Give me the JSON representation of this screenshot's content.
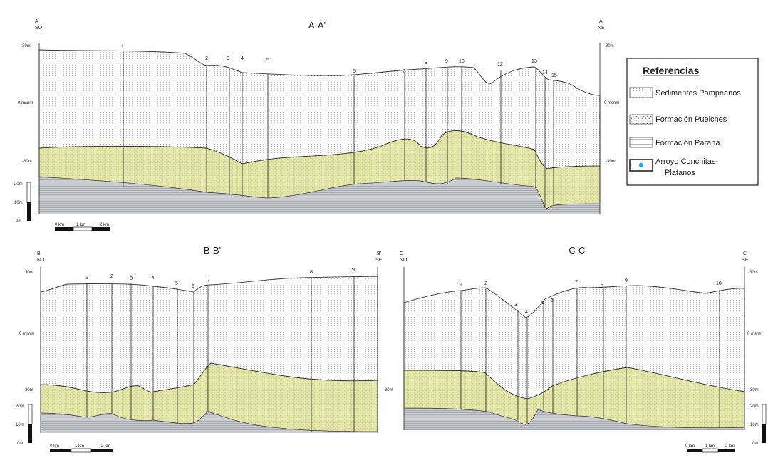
{
  "sections": [
    {
      "id": "a",
      "title": "A-A'",
      "left_label": "A",
      "left_dir": "SO",
      "right_label": "A'",
      "right_dir": "NE",
      "left_ticks": [
        "30m",
        "0 msnm",
        "-30m"
      ],
      "right_ticks": [
        "30m",
        "0 msnm",
        "-30m"
      ],
      "vscale_ticks": [
        "20m",
        "10m",
        "0m"
      ],
      "scalebar": [
        "0 km",
        "1 km",
        "2 km"
      ],
      "well_labels": [
        "1",
        "2",
        "3",
        "4",
        "5",
        "6",
        "7",
        "8",
        "9",
        "10",
        "12",
        "13",
        "14",
        "15"
      ]
    },
    {
      "id": "b",
      "title": "B-B'",
      "left_label": "B",
      "left_dir": "NO",
      "right_label": "B'",
      "right_dir": "SE",
      "left_ticks": [
        "30m",
        "0 msnm",
        "-30m"
      ],
      "right_ticks": [
        "-30m"
      ],
      "vscale_ticks": [
        "20m",
        "10m",
        "0m"
      ],
      "scalebar": [
        "0 km",
        "1 km",
        "2 km"
      ],
      "well_labels": [
        "1",
        "2",
        "3",
        "4",
        "5",
        "6",
        "7",
        "8",
        "9"
      ]
    },
    {
      "id": "c",
      "title": "C-C'",
      "left_label": "C",
      "left_dir": "NO",
      "right_label": "C'",
      "right_dir": "SE",
      "left_ticks": [],
      "right_ticks": [
        "30m",
        "0 msnm",
        "-30m"
      ],
      "vscale_ticks": [
        "20m",
        "10m",
        "0m"
      ],
      "scalebar": [
        "0 km",
        "1 km",
        "2 km"
      ],
      "well_labels": [
        "1",
        "2",
        "3",
        "4",
        "5",
        "6",
        "7",
        "8",
        "9",
        "10"
      ]
    }
  ],
  "legend": {
    "title": "Referencias",
    "items": [
      {
        "label": "Sedimentos Pampeanos",
        "pattern": "pampeano"
      },
      {
        "label": "Formación Puelches",
        "pattern": "puelches"
      },
      {
        "label": "Formación Paraná",
        "pattern": "parana"
      },
      {
        "label": "Arroyo Conchitas-Platanos",
        "pattern": "arroyo",
        "lines": [
          "Arroyo Conchitas-",
          "Platanos"
        ]
      }
    ]
  },
  "colors": {
    "puelches": "#e4e5a8",
    "parana": "#c9cbd0",
    "pampeano": "#ffffff",
    "arroyo": "#2aa5d8"
  }
}
